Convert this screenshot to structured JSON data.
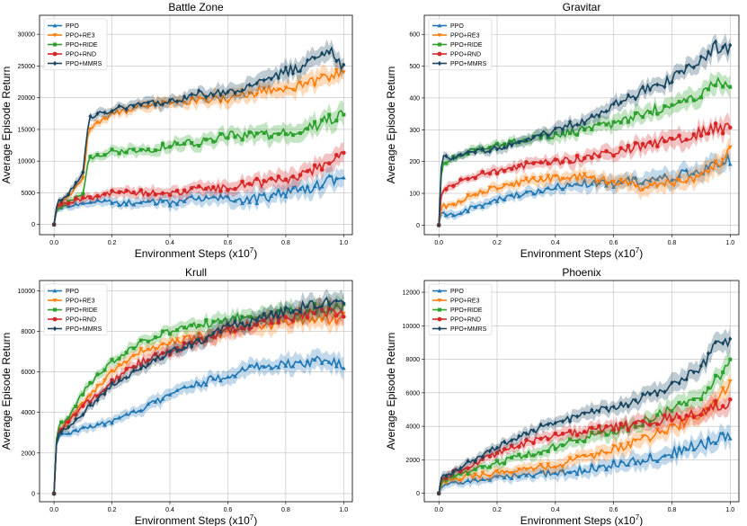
{
  "figure": {
    "series_styles": [
      {
        "name": "PPO",
        "color": "#1f77b4",
        "marker": "triangle"
      },
      {
        "name": "PPO+RE3",
        "color": "#ff7f0e",
        "marker": "triangle-down"
      },
      {
        "name": "PPO+RIDE",
        "color": "#2ca02c",
        "marker": "square"
      },
      {
        "name": "PPO+RND",
        "color": "#d62728",
        "marker": "circle"
      },
      {
        "name": "PPO+MMRS",
        "color": "#17445e",
        "marker": "diamond"
      }
    ]
  },
  "chart_data": [
    {
      "type": "line",
      "title": "Battle Zone",
      "xlabel": "Environment Steps (x10",
      "xlabel_exp": "7",
      "xlabel_close": ")",
      "ylabel": "Average Episode Return",
      "xlim": [
        -0.05,
        1.03
      ],
      "ylim": [
        -1600,
        33000
      ],
      "xticks": [
        0.0,
        0.2,
        0.4,
        0.6,
        0.8,
        1.0
      ],
      "xtick_labels": [
        "0.0",
        "0.2",
        "0.4",
        "0.6",
        "0.8",
        "1.0"
      ],
      "yticks": [
        0,
        5000,
        10000,
        15000,
        20000,
        25000,
        30000
      ],
      "ytick_labels": [
        "0",
        "5000",
        "10000",
        "15000",
        "20000",
        "25000",
        "30000"
      ],
      "legend": "top-left",
      "grid": true,
      "series": [
        {
          "name": "PPO",
          "x": [
            0,
            0.01,
            0.05,
            0.1,
            0.2,
            0.3,
            0.4,
            0.5,
            0.6,
            0.7,
            0.8,
            0.9,
            0.95,
            1.0
          ],
          "y": [
            0,
            2500,
            3000,
            3500,
            3500,
            3500,
            3500,
            4000,
            4000,
            4000,
            5000,
            6000,
            7000,
            7500
          ]
        },
        {
          "name": "PPO+RE3",
          "x": [
            0,
            0.01,
            0.05,
            0.1,
            0.12,
            0.2,
            0.3,
            0.4,
            0.5,
            0.6,
            0.7,
            0.8,
            0.9,
            0.95,
            1.0
          ],
          "y": [
            0,
            3000,
            4500,
            7000,
            15000,
            17500,
            18500,
            19000,
            19500,
            20000,
            21000,
            21500,
            22500,
            23500,
            24000
          ]
        },
        {
          "name": "PPO+RIDE",
          "x": [
            0,
            0.01,
            0.05,
            0.1,
            0.12,
            0.2,
            0.3,
            0.4,
            0.5,
            0.6,
            0.7,
            0.8,
            0.9,
            0.95,
            1.0
          ],
          "y": [
            0,
            2500,
            3500,
            5000,
            10500,
            11500,
            11500,
            12500,
            13000,
            14000,
            14000,
            14500,
            15500,
            16500,
            18000
          ]
        },
        {
          "name": "PPO+RND",
          "x": [
            0,
            0.01,
            0.05,
            0.1,
            0.2,
            0.3,
            0.4,
            0.5,
            0.6,
            0.7,
            0.8,
            0.9,
            0.95,
            1.0
          ],
          "y": [
            0,
            3000,
            3500,
            4000,
            5000,
            5000,
            5000,
            5500,
            6000,
            6500,
            7000,
            8500,
            10000,
            11000
          ]
        },
        {
          "name": "PPO+MMRS",
          "x": [
            0,
            0.01,
            0.05,
            0.1,
            0.12,
            0.2,
            0.3,
            0.4,
            0.5,
            0.6,
            0.7,
            0.8,
            0.9,
            0.95,
            1.0
          ],
          "y": [
            0,
            3500,
            5000,
            8000,
            17000,
            18000,
            19000,
            19500,
            20500,
            21000,
            22500,
            24000,
            26000,
            27500,
            24500
          ]
        }
      ]
    },
    {
      "type": "line",
      "title": "Gravitar",
      "xlabel": "Environment Steps (x10",
      "xlabel_exp": "7",
      "xlabel_close": ")",
      "ylabel": "Average Episode Return",
      "xlim": [
        -0.05,
        1.03
      ],
      "ylim": [
        -30,
        660
      ],
      "xticks": [
        0.0,
        0.2,
        0.4,
        0.6,
        0.8,
        1.0
      ],
      "xtick_labels": [
        "0.0",
        "0.2",
        "0.4",
        "0.6",
        "0.8",
        "1.0"
      ],
      "yticks": [
        0,
        100,
        200,
        300,
        400,
        500,
        600
      ],
      "ytick_labels": [
        "0",
        "100",
        "200",
        "300",
        "400",
        "500",
        "600"
      ],
      "legend": "top-left",
      "grid": true,
      "series": [
        {
          "name": "PPO",
          "x": [
            0,
            0.01,
            0.05,
            0.1,
            0.2,
            0.3,
            0.4,
            0.5,
            0.6,
            0.7,
            0.8,
            0.9,
            0.95,
            1.0
          ],
          "y": [
            0,
            40,
            30,
            50,
            80,
            100,
            120,
            130,
            130,
            140,
            150,
            170,
            190,
            210
          ]
        },
        {
          "name": "PPO+RE3",
          "x": [
            0,
            0.01,
            0.05,
            0.1,
            0.2,
            0.3,
            0.4,
            0.5,
            0.6,
            0.7,
            0.8,
            0.9,
            0.95,
            1.0
          ],
          "y": [
            0,
            60,
            60,
            90,
            120,
            140,
            150,
            150,
            140,
            120,
            130,
            160,
            190,
            230
          ]
        },
        {
          "name": "PPO+RIDE",
          "x": [
            0,
            0.01,
            0.05,
            0.1,
            0.2,
            0.3,
            0.4,
            0.5,
            0.6,
            0.7,
            0.8,
            0.9,
            0.95,
            1.0
          ],
          "y": [
            0,
            190,
            210,
            230,
            250,
            270,
            280,
            300,
            320,
            350,
            380,
            410,
            450,
            430
          ]
        },
        {
          "name": "PPO+RND",
          "x": [
            0,
            0.01,
            0.05,
            0.1,
            0.2,
            0.3,
            0.4,
            0.5,
            0.6,
            0.7,
            0.8,
            0.9,
            0.95,
            1.0
          ],
          "y": [
            0,
            110,
            130,
            150,
            170,
            190,
            200,
            210,
            230,
            250,
            270,
            290,
            310,
            300
          ]
        },
        {
          "name": "PPO+MMRS",
          "x": [
            0,
            0.01,
            0.05,
            0.1,
            0.2,
            0.3,
            0.4,
            0.5,
            0.6,
            0.7,
            0.8,
            0.9,
            0.95,
            1.0
          ],
          "y": [
            0,
            220,
            210,
            230,
            240,
            270,
            300,
            330,
            380,
            420,
            460,
            520,
            560,
            550
          ]
        }
      ]
    },
    {
      "type": "line",
      "title": "Krull",
      "xlabel": "Environment Steps (x10",
      "xlabel_exp": "7",
      "xlabel_close": ")",
      "ylabel": "Average Episode Return",
      "xlim": [
        -0.05,
        1.03
      ],
      "ylim": [
        -400,
        10500
      ],
      "xticks": [
        0.0,
        0.2,
        0.4,
        0.6,
        0.8,
        1.0
      ],
      "xtick_labels": [
        "0.0",
        "0.2",
        "0.4",
        "0.6",
        "0.8",
        "1.0"
      ],
      "yticks": [
        0,
        2000,
        4000,
        6000,
        8000,
        10000
      ],
      "ytick_labels": [
        "0",
        "2000",
        "4000",
        "6000",
        "8000",
        "10000"
      ],
      "legend": "top-left",
      "grid": true,
      "series": [
        {
          "name": "PPO",
          "x": [
            0,
            0.01,
            0.05,
            0.1,
            0.2,
            0.3,
            0.4,
            0.5,
            0.6,
            0.7,
            0.8,
            0.9,
            1.0
          ],
          "y": [
            0,
            2800,
            3000,
            3200,
            3600,
            4200,
            4800,
            5400,
            5900,
            6200,
            6400,
            6500,
            6400
          ]
        },
        {
          "name": "PPO+RE3",
          "x": [
            0,
            0.01,
            0.05,
            0.1,
            0.2,
            0.3,
            0.4,
            0.5,
            0.6,
            0.7,
            0.8,
            0.9,
            1.0
          ],
          "y": [
            0,
            3000,
            3500,
            4500,
            6000,
            7000,
            7500,
            7700,
            8000,
            8200,
            8500,
            8600,
            8700
          ]
        },
        {
          "name": "PPO+RIDE",
          "x": [
            0,
            0.01,
            0.05,
            0.1,
            0.2,
            0.3,
            0.4,
            0.5,
            0.6,
            0.7,
            0.8,
            0.9,
            1.0
          ],
          "y": [
            0,
            3200,
            3800,
            5000,
            6500,
            7500,
            8000,
            8300,
            8600,
            8800,
            9000,
            9100,
            9200
          ]
        },
        {
          "name": "PPO+RND",
          "x": [
            0,
            0.01,
            0.05,
            0.1,
            0.2,
            0.3,
            0.4,
            0.5,
            0.6,
            0.7,
            0.8,
            0.9,
            1.0
          ],
          "y": [
            0,
            3000,
            3600,
            4300,
            5500,
            6500,
            7000,
            7500,
            8000,
            8400,
            8700,
            8900,
            9000
          ]
        },
        {
          "name": "PPO+MMRS",
          "x": [
            0,
            0.01,
            0.05,
            0.1,
            0.2,
            0.3,
            0.4,
            0.5,
            0.6,
            0.7,
            0.8,
            0.9,
            1.0
          ],
          "y": [
            0,
            2900,
            3300,
            4000,
            5300,
            6200,
            7000,
            7500,
            8200,
            8600,
            9000,
            9300,
            9600
          ]
        }
      ]
    },
    {
      "type": "line",
      "title": "Phoenix",
      "xlabel": "Environment Steps (x10",
      "xlabel_exp": "7",
      "xlabel_close": ")",
      "ylabel": "Average Episode Return",
      "xlim": [
        -0.05,
        1.03
      ],
      "ylim": [
        -500,
        12700
      ],
      "xticks": [
        0.0,
        0.2,
        0.4,
        0.6,
        0.8,
        1.0
      ],
      "xtick_labels": [
        "0.0",
        "0.2",
        "0.4",
        "0.6",
        "0.8",
        "1.0"
      ],
      "yticks": [
        0,
        2000,
        4000,
        6000,
        8000,
        10000,
        12000
      ],
      "ytick_labels": [
        "0",
        "2000",
        "4000",
        "6000",
        "8000",
        "10000",
        "12000"
      ],
      "legend": "top-left",
      "grid": true,
      "series": [
        {
          "name": "PPO",
          "x": [
            0,
            0.01,
            0.05,
            0.1,
            0.2,
            0.3,
            0.4,
            0.5,
            0.6,
            0.7,
            0.8,
            0.9,
            0.95,
            1.0
          ],
          "y": [
            0,
            500,
            600,
            700,
            900,
            1100,
            1200,
            1400,
            1700,
            2000,
            2400,
            2900,
            3200,
            3500
          ]
        },
        {
          "name": "PPO+RE3",
          "x": [
            0,
            0.01,
            0.05,
            0.1,
            0.2,
            0.3,
            0.4,
            0.5,
            0.6,
            0.7,
            0.8,
            0.9,
            0.95,
            1.0
          ],
          "y": [
            0,
            700,
            800,
            1000,
            1200,
            1400,
            1700,
            2100,
            2600,
            3200,
            3900,
            4800,
            5500,
            6500
          ]
        },
        {
          "name": "PPO+RIDE",
          "x": [
            0,
            0.01,
            0.05,
            0.1,
            0.2,
            0.3,
            0.4,
            0.5,
            0.6,
            0.7,
            0.8,
            0.9,
            0.95,
            1.0
          ],
          "y": [
            0,
            800,
            1000,
            1300,
            1800,
            2300,
            2800,
            3300,
            3700,
            4300,
            5000,
            5900,
            6800,
            7800
          ]
        },
        {
          "name": "PPO+RND",
          "x": [
            0,
            0.01,
            0.05,
            0.1,
            0.2,
            0.3,
            0.4,
            0.5,
            0.6,
            0.7,
            0.8,
            0.9,
            0.95,
            1.0
          ],
          "y": [
            0,
            900,
            1200,
            1600,
            2400,
            3000,
            3400,
            3700,
            3900,
            4200,
            4500,
            4800,
            5200,
            5500
          ]
        },
        {
          "name": "PPO+MMRS",
          "x": [
            0,
            0.01,
            0.05,
            0.1,
            0.2,
            0.3,
            0.4,
            0.5,
            0.6,
            0.7,
            0.8,
            0.9,
            0.95,
            1.0
          ],
          "y": [
            0,
            1000,
            1300,
            1800,
            2800,
            3600,
            4200,
            4700,
            5100,
            5700,
            6500,
            7500,
            8800,
            9000
          ]
        }
      ]
    }
  ]
}
